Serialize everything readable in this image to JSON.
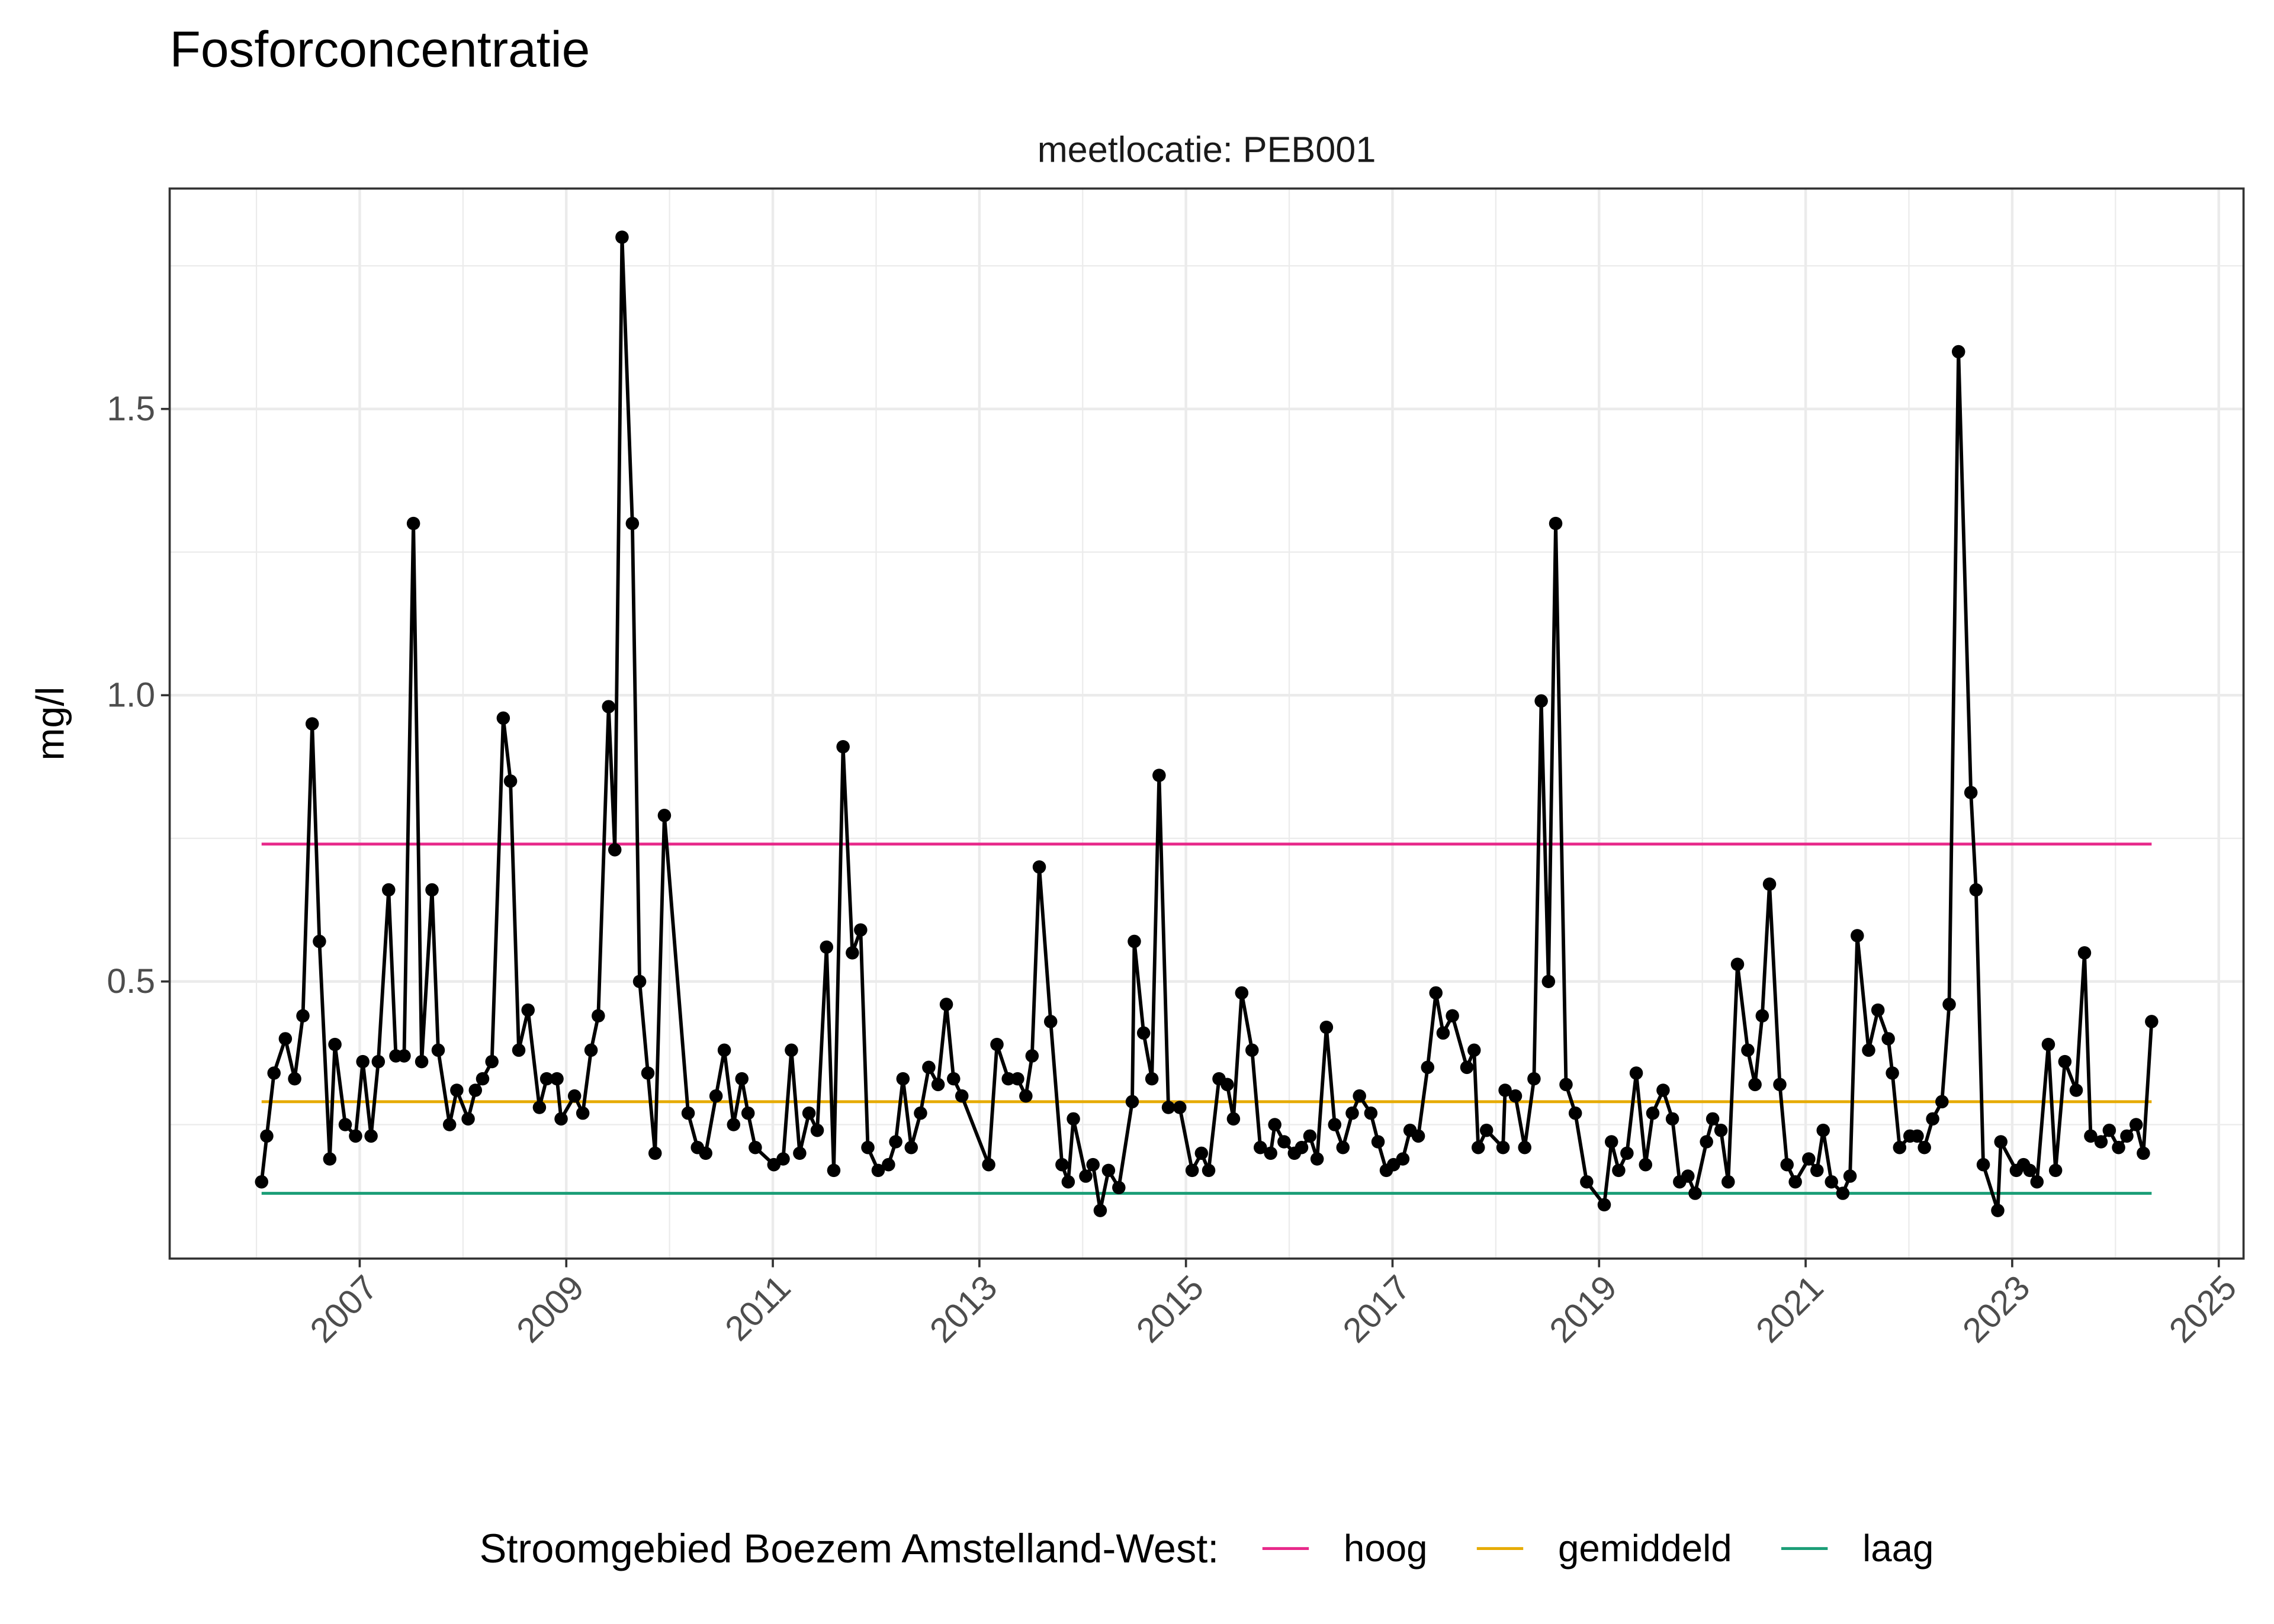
{
  "chart_data": {
    "type": "line",
    "title": "Fosforconcentratie",
    "facet_label": "meetlocatie: PEB001",
    "ylabel": "mg/l",
    "x": [
      2006.05,
      2006.1,
      2006.17,
      2006.28,
      2006.37,
      2006.45,
      2006.54,
      2006.61,
      2006.71,
      2006.76,
      2006.86,
      2006.96,
      2007.03,
      2007.11,
      2007.18,
      2007.28,
      2007.35,
      2007.43,
      2007.52,
      2007.6,
      2007.7,
      2007.76,
      2007.87,
      2007.94,
      2008.05,
      2008.12,
      2008.19,
      2008.28,
      2008.39,
      2008.46,
      2008.54,
      2008.63,
      2008.74,
      2008.81,
      2008.91,
      2008.95,
      2009.08,
      2009.16,
      2009.24,
      2009.31,
      2009.41,
      2009.47,
      2009.54,
      2009.64,
      2009.71,
      2009.79,
      2009.86,
      2009.95,
      2010.18,
      2010.27,
      2010.35,
      2010.45,
      2010.53,
      2010.62,
      2010.7,
      2010.76,
      2010.83,
      2011.01,
      2011.1,
      2011.18,
      2011.26,
      2011.35,
      2011.43,
      2011.52,
      2011.59,
      2011.68,
      2011.77,
      2011.85,
      2011.92,
      2012.02,
      2012.12,
      2012.19,
      2012.26,
      2012.34,
      2012.43,
      2012.51,
      2012.6,
      2012.68,
      2012.75,
      2012.83,
      2013.09,
      2013.17,
      2013.28,
      2013.37,
      2013.45,
      2013.51,
      2013.58,
      2013.69,
      2013.8,
      2013.86,
      2013.91,
      2014.03,
      2014.1,
      2014.17,
      2014.25,
      2014.35,
      2014.48,
      2014.5,
      2014.59,
      2014.67,
      2014.74,
      2014.83,
      2014.94,
      2015.06,
      2015.15,
      2015.22,
      2015.32,
      2015.4,
      2015.46,
      2015.54,
      2015.64,
      2015.72,
      2015.82,
      2015.86,
      2015.95,
      2016.05,
      2016.12,
      2016.2,
      2016.27,
      2016.36,
      2016.44,
      2016.52,
      2016.61,
      2016.68,
      2016.79,
      2016.86,
      2016.94,
      2017.01,
      2017.1,
      2017.17,
      2017.25,
      2017.34,
      2017.42,
      2017.49,
      2017.58,
      2017.72,
      2017.79,
      2017.83,
      2017.91,
      2018.07,
      2018.09,
      2018.19,
      2018.28,
      2018.37,
      2018.44,
      2018.51,
      2018.58,
      2018.68,
      2018.77,
      2018.88,
      2019.05,
      2019.12,
      2019.19,
      2019.27,
      2019.36,
      2019.45,
      2019.52,
      2019.62,
      2019.71,
      2019.78,
      2019.86,
      2019.93,
      2020.04,
      2020.1,
      2020.18,
      2020.25,
      2020.34,
      2020.44,
      2020.51,
      2020.58,
      2020.65,
      2020.75,
      2020.82,
      2020.9,
      2021.03,
      2021.11,
      2021.17,
      2021.25,
      2021.36,
      2021.43,
      2021.5,
      2021.61,
      2021.7,
      2021.8,
      2021.84,
      2021.91,
      2022.01,
      2022.08,
      2022.15,
      2022.23,
      2022.32,
      2022.39,
      2022.48,
      2022.6,
      2022.65,
      2022.72,
      2022.86,
      2022.89,
      2023.04,
      2023.11,
      2023.17,
      2023.24,
      2023.35,
      2023.42,
      2023.51,
      2023.62,
      2023.7,
      2023.76,
      2023.86,
      2023.94,
      2024.03,
      2024.11,
      2024.2,
      2024.27,
      2024.35
    ],
    "series": [
      {
        "color": "#000000",
        "markers": true,
        "values": [
          0.15,
          0.23,
          0.34,
          0.4,
          0.33,
          0.44,
          0.95,
          0.57,
          0.19,
          0.39,
          0.25,
          0.23,
          0.36,
          0.23,
          0.36,
          0.66,
          0.37,
          0.37,
          1.3,
          0.36,
          0.66,
          0.38,
          0.25,
          0.31,
          0.26,
          0.31,
          0.33,
          0.36,
          0.96,
          0.85,
          0.38,
          0.45,
          0.28,
          0.33,
          0.33,
          0.26,
          0.3,
          0.27,
          0.38,
          0.44,
          0.98,
          0.73,
          1.8,
          1.3,
          0.5,
          0.34,
          0.2,
          0.79,
          0.27,
          0.21,
          0.2,
          0.3,
          0.38,
          0.25,
          0.33,
          0.27,
          0.21,
          0.18,
          0.19,
          0.38,
          0.2,
          0.27,
          0.24,
          0.56,
          0.17,
          0.91,
          0.55,
          0.59,
          0.21,
          0.17,
          0.18,
          0.22,
          0.33,
          0.21,
          0.27,
          0.35,
          0.32,
          0.46,
          0.33,
          0.3,
          0.18,
          0.39,
          0.33,
          0.33,
          0.3,
          0.37,
          0.7,
          0.43,
          0.18,
          0.15,
          0.26,
          0.16,
          0.18,
          0.1,
          0.17,
          0.14,
          0.29,
          0.57,
          0.41,
          0.33,
          0.86,
          0.28,
          0.28,
          0.17,
          0.2,
          0.17,
          0.33,
          0.32,
          0.26,
          0.48,
          0.38,
          0.21,
          0.2,
          0.25,
          0.22,
          0.2,
          0.21,
          0.23,
          0.19,
          0.42,
          0.25,
          0.21,
          0.27,
          0.3,
          0.27,
          0.22,
          0.17,
          0.18,
          0.19,
          0.24,
          0.23,
          0.35,
          0.48,
          0.41,
          0.44,
          0.35,
          0.38,
          0.21,
          0.24,
          0.21,
          0.31,
          0.3,
          0.21,
          0.33,
          0.99,
          0.5,
          1.3,
          0.32,
          0.27,
          0.15,
          0.11,
          0.22,
          0.17,
          0.2,
          0.34,
          0.18,
          0.27,
          0.31,
          0.26,
          0.15,
          0.16,
          0.13,
          0.22,
          0.26,
          0.24,
          0.15,
          0.53,
          0.38,
          0.32,
          0.44,
          0.67,
          0.32,
          0.18,
          0.15,
          0.19,
          0.17,
          0.24,
          0.15,
          0.13,
          0.16,
          0.58,
          0.38,
          0.45,
          0.4,
          0.34,
          0.21,
          0.23,
          0.23,
          0.21,
          0.26,
          0.29,
          0.46,
          1.6,
          0.83,
          0.66,
          0.18,
          0.1,
          0.22,
          0.17,
          0.18,
          0.17,
          0.15,
          0.39,
          0.17,
          0.36,
          0.31,
          0.55,
          0.23,
          0.22,
          0.24,
          0.21,
          0.23,
          0.25,
          0.2,
          0.43
        ]
      }
    ],
    "reference_xrange": [
      2006.05,
      2024.35
    ],
    "reference_lines": [
      {
        "name": "hoog",
        "color": "#e7298a",
        "y": 0.74
      },
      {
        "name": "gemiddeld",
        "color": "#e6ab02",
        "y": 0.29
      },
      {
        "name": "laag",
        "color": "#1b9e77",
        "y": 0.13
      }
    ],
    "legend_title": "Stroomgebied Boezem Amstelland-West:",
    "legend_position": "bottom",
    "xlim": [
      2005.16,
      2025.24
    ],
    "xticks": [
      2007,
      2009,
      2011,
      2013,
      2015,
      2017,
      2019,
      2021,
      2023,
      2025
    ],
    "xminorticks": [
      2006,
      2008,
      2010,
      2012,
      2014,
      2016,
      2018,
      2020,
      2022,
      2024
    ],
    "ylim": [
      0.016,
      1.885
    ],
    "yticks": [
      0.5,
      {
        "value": 1,
        "label": "1.0"
      },
      1.5
    ],
    "yminorticks": [
      0.25,
      0.75,
      1.25,
      1.75
    ],
    "grid": true
  }
}
